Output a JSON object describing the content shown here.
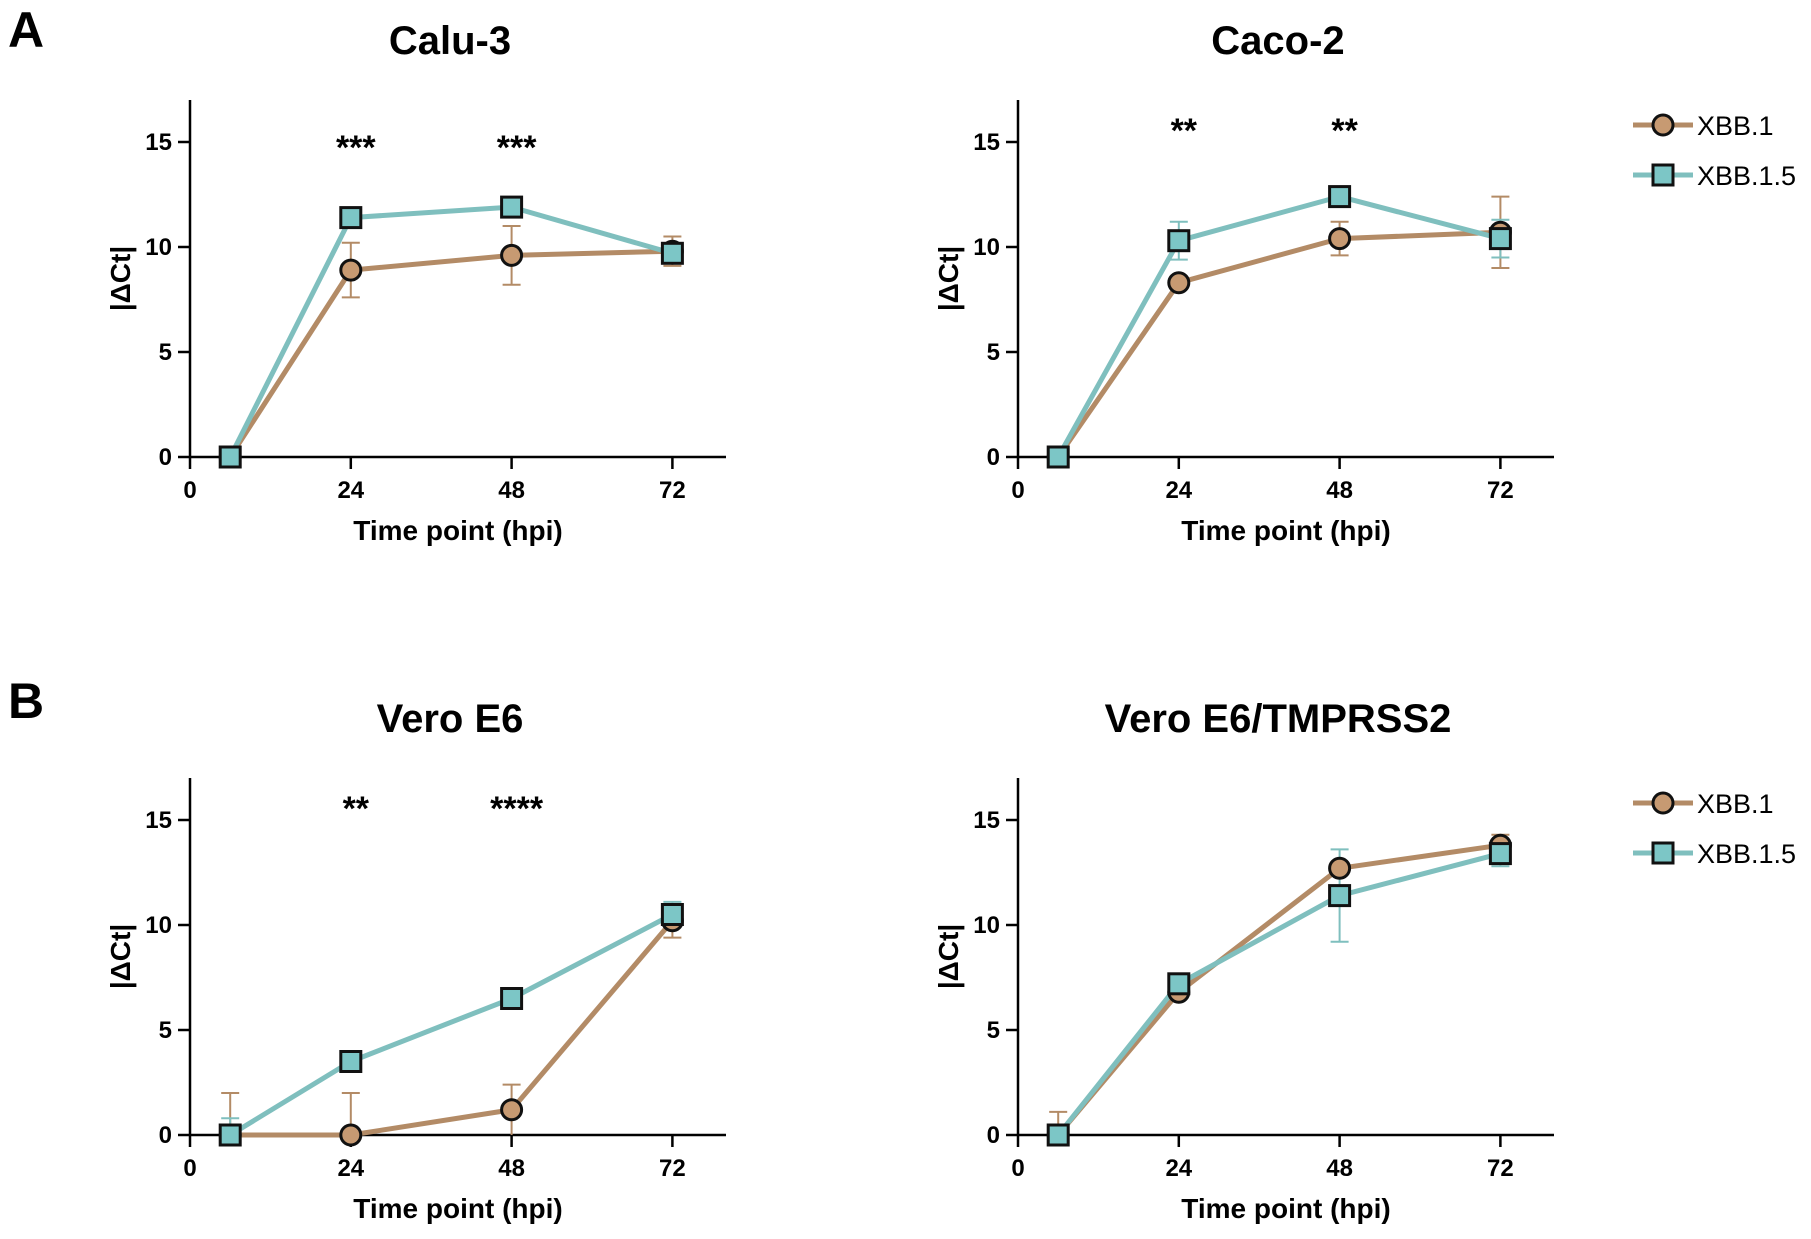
{
  "figure": {
    "panels": [
      {
        "letter": "A"
      },
      {
        "letter": "B"
      }
    ],
    "colors": {
      "xbb1": "#b38b66",
      "xbb1_fill": "#c79a72",
      "xbb15": "#7fbfbe",
      "xbb15_fill": "#7cc6c6",
      "marker_edge": "#111111"
    },
    "legends": [
      {
        "entries": [
          {
            "label": "XBB.1",
            "marker": "circle",
            "color_key": "xbb1"
          },
          {
            "label": "XBB.1.5",
            "marker": "square",
            "color_key": "xbb15"
          }
        ]
      },
      {
        "entries": [
          {
            "label": "XBB.1",
            "marker": "circle",
            "color_key": "xbb1"
          },
          {
            "label": "XBB.1.5",
            "marker": "square",
            "color_key": "xbb15"
          }
        ]
      }
    ]
  },
  "chart_data": [
    {
      "type": "line",
      "title": "Calu-3",
      "xlabel": "Time point (hpi)",
      "ylabel": "|ΔCt|",
      "xlim": [
        0,
        80
      ],
      "ylim": [
        0,
        17
      ],
      "xticks": [
        0,
        24,
        48,
        72
      ],
      "yticks": [
        0,
        5,
        10,
        15
      ],
      "x": [
        6,
        24,
        48,
        72
      ],
      "series": [
        {
          "name": "XBB.1",
          "values": [
            0,
            8.9,
            9.6,
            9.8
          ],
          "err_up": [
            0.1,
            1.3,
            1.4,
            0.7
          ],
          "err_down": [
            0.1,
            1.3,
            1.4,
            0.7
          ]
        },
        {
          "name": "XBB.1.5",
          "values": [
            0,
            11.4,
            11.9,
            9.7
          ],
          "err_up": [
            0.1,
            0.2,
            0.2,
            0.3
          ],
          "err_down": [
            0.1,
            0.2,
            0.2,
            0.3
          ]
        }
      ],
      "annotations": [
        {
          "x": 24,
          "y": 15,
          "text": "***"
        },
        {
          "x": 48,
          "y": 15,
          "text": "***"
        }
      ]
    },
    {
      "type": "line",
      "title": "Caco-2",
      "xlabel": "Time point (hpi)",
      "ylabel": "|ΔCt|",
      "xlim": [
        0,
        80
      ],
      "ylim": [
        0,
        17
      ],
      "xticks": [
        0,
        24,
        48,
        72
      ],
      "yticks": [
        0,
        5,
        10,
        15
      ],
      "x": [
        6,
        24,
        48,
        72
      ],
      "series": [
        {
          "name": "XBB.1",
          "values": [
            0,
            8.3,
            10.4,
            10.7
          ],
          "err_up": [
            0.1,
            0.3,
            0.8,
            1.7
          ],
          "err_down": [
            0.1,
            0.3,
            0.8,
            1.7
          ]
        },
        {
          "name": "XBB.1.5",
          "values": [
            0,
            10.3,
            12.4,
            10.4
          ],
          "err_up": [
            0.1,
            0.9,
            0.2,
            0.9
          ],
          "err_down": [
            0.1,
            0.9,
            0.2,
            0.9
          ]
        }
      ],
      "annotations": [
        {
          "x": 24,
          "y": 15.8,
          "text": "**"
        },
        {
          "x": 48,
          "y": 15.8,
          "text": "**"
        }
      ]
    },
    {
      "type": "line",
      "title": "Vero E6",
      "xlabel": "Time point (hpi)",
      "ylabel": "|ΔCt|",
      "xlim": [
        0,
        80
      ],
      "ylim": [
        0,
        17
      ],
      "xticks": [
        0,
        24,
        48,
        72
      ],
      "yticks": [
        0,
        5,
        10,
        15
      ],
      "x": [
        6,
        24,
        48,
        72
      ],
      "series": [
        {
          "name": "XBB.1",
          "values": [
            0,
            0,
            1.2,
            10.2
          ],
          "err_up": [
            2.0,
            2.0,
            1.2,
            0.8
          ],
          "err_down": [
            0,
            0,
            1.2,
            0.8
          ]
        },
        {
          "name": "XBB.1.5",
          "values": [
            0,
            3.5,
            6.5,
            10.5
          ],
          "err_up": [
            0.8,
            0.2,
            0.2,
            0.6
          ],
          "err_down": [
            0,
            0.2,
            0.2,
            0.6
          ]
        }
      ],
      "annotations": [
        {
          "x": 24,
          "y": 15.8,
          "text": "**"
        },
        {
          "x": 48,
          "y": 15.8,
          "text": "****"
        }
      ]
    },
    {
      "type": "line",
      "title": "Vero E6/TMPRSS2",
      "xlabel": "Time point (hpi)",
      "ylabel": "|ΔCt|",
      "xlim": [
        0,
        80
      ],
      "ylim": [
        0,
        17
      ],
      "xticks": [
        0,
        24,
        48,
        72
      ],
      "yticks": [
        0,
        5,
        10,
        15
      ],
      "x": [
        6,
        24,
        48,
        72
      ],
      "series": [
        {
          "name": "XBB.1",
          "values": [
            0,
            6.8,
            12.7,
            13.8
          ],
          "err_up": [
            1.1,
            0.2,
            0.3,
            0.5
          ],
          "err_down": [
            0,
            0.2,
            0.3,
            0.5
          ]
        },
        {
          "name": "XBB.1.5",
          "values": [
            0,
            7.2,
            11.4,
            13.4
          ],
          "err_up": [
            0.4,
            0.3,
            2.2,
            0.6
          ],
          "err_down": [
            0,
            0.3,
            2.2,
            0.6
          ]
        }
      ],
      "annotations": []
    }
  ]
}
